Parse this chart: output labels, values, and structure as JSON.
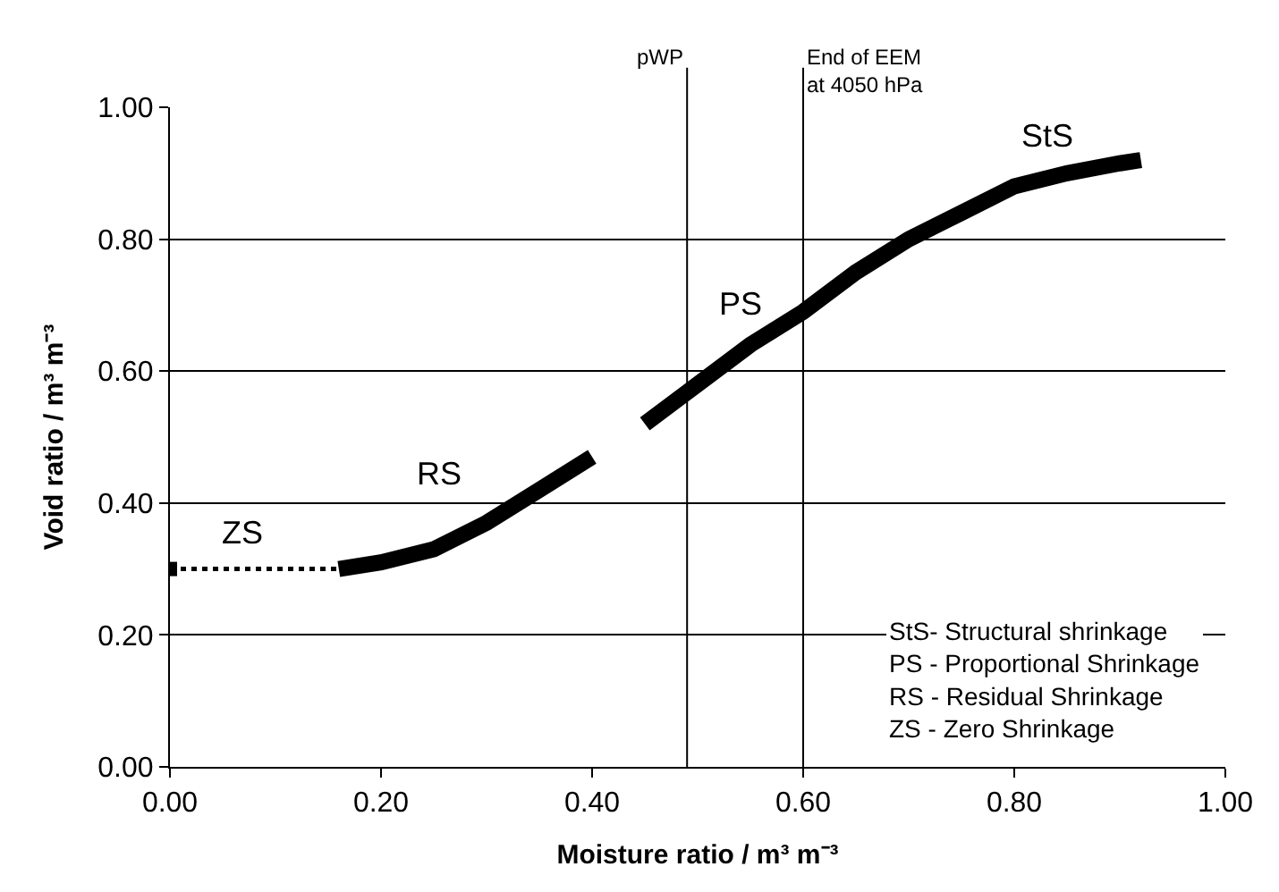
{
  "chart_data": {
    "type": "line",
    "xlabel": "Moisture ratio / m³ m⁻³",
    "ylabel": "Void ratio / m³ m⁻³",
    "xlim": [
      0,
      1
    ],
    "xticks": [
      {
        "value": 0,
        "label": "0.00"
      },
      {
        "value": 0.2,
        "label": "0.20"
      },
      {
        "value": 0.4,
        "label": "0.40"
      },
      {
        "value": 0.6,
        "label": "0.60"
      },
      {
        "value": 0.8,
        "label": "0.80"
      },
      {
        "value": 1,
        "label": "1.00"
      }
    ],
    "ylim": [
      0,
      1
    ],
    "yticks": [
      {
        "value": 0,
        "label": "0.00"
      },
      {
        "value": 0.2,
        "label": "0.20"
      },
      {
        "value": 0.4,
        "label": "0.40"
      },
      {
        "value": 0.6,
        "label": "0.60"
      },
      {
        "value": 0.8,
        "label": "0.80"
      },
      {
        "value": 1,
        "label": "1.00"
      }
    ],
    "grid": "y",
    "series": [
      {
        "color": "#000000",
        "line_style": "solid",
        "x": [
          0.16,
          0.2,
          0.25,
          0.3,
          0.35,
          0.4,
          0.42,
          0.45,
          0.5,
          0.55,
          0.6,
          0.65,
          0.7,
          0.75,
          0.8,
          0.85,
          0.9,
          0.92
        ],
        "values": [
          0.3,
          0.31,
          0.33,
          0.37,
          0.42,
          0.47,
          null,
          0.52,
          0.58,
          0.64,
          0.69,
          0.75,
          0.8,
          0.84,
          0.88,
          0.9,
          0.915,
          0.92
        ]
      },
      {
        "color": "#000000",
        "line_style": "dotted",
        "x": [
          0,
          0.16
        ],
        "values": [
          0.3,
          0.3
        ]
      },
      {
        "type": "scatter",
        "color": "#000000",
        "marker": "square",
        "x": [
          0
        ],
        "values": [
          0.3
        ]
      }
    ],
    "ref_lines": [
      {
        "axis": "x",
        "value": 0.49,
        "label": "pWP"
      },
      {
        "axis": "x",
        "value": 0.6,
        "label": "End of EEM\nat 4050 hPa"
      }
    ],
    "annotations": [
      "ZS",
      "RS",
      "PS",
      "StS",
      "StS- Structural shrinkage\nPS - Proportional Shrinkage\nRS - Residual Shrinkage\nZS - Zero Shrinkage"
    ]
  }
}
